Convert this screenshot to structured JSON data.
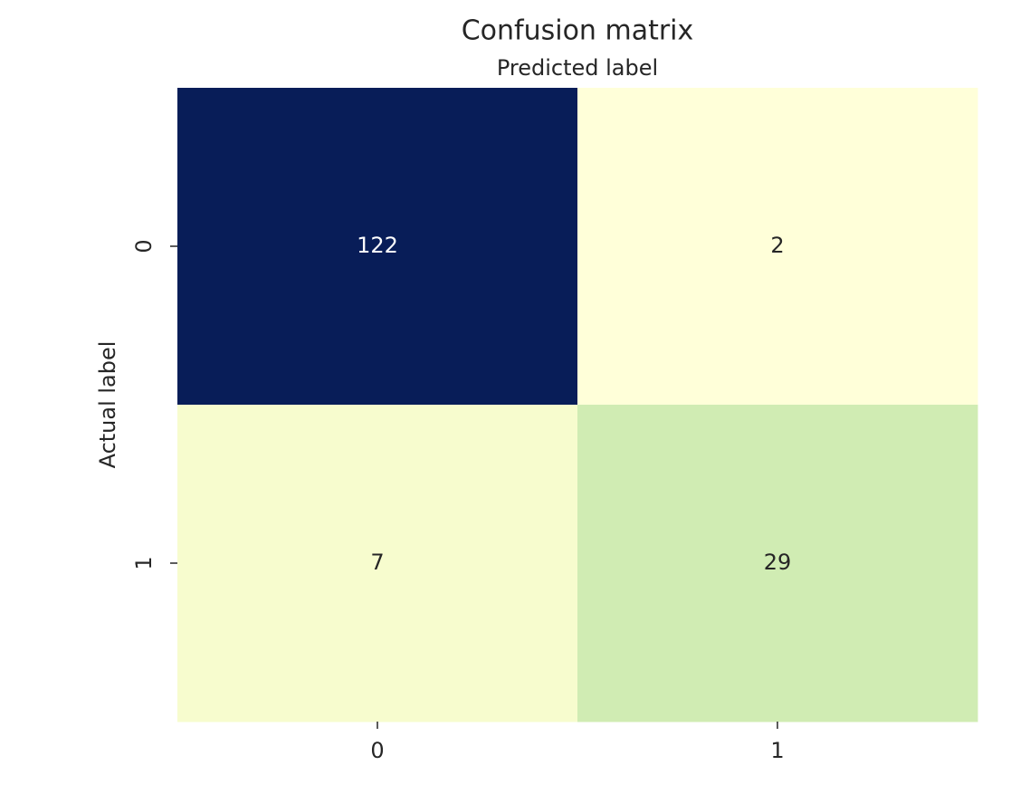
{
  "chart_data": {
    "type": "heatmap",
    "title": "Confusion matrix",
    "xlabel": "Predicted label",
    "ylabel": "Actual label",
    "x_categories": [
      "0",
      "1"
    ],
    "y_categories": [
      "0",
      "1"
    ],
    "values": [
      [
        122,
        2
      ],
      [
        7,
        29
      ]
    ],
    "colors": [
      [
        "#081d58",
        "#ffffd9"
      ],
      [
        "#f7fcce",
        "#d0ecb3"
      ]
    ]
  }
}
